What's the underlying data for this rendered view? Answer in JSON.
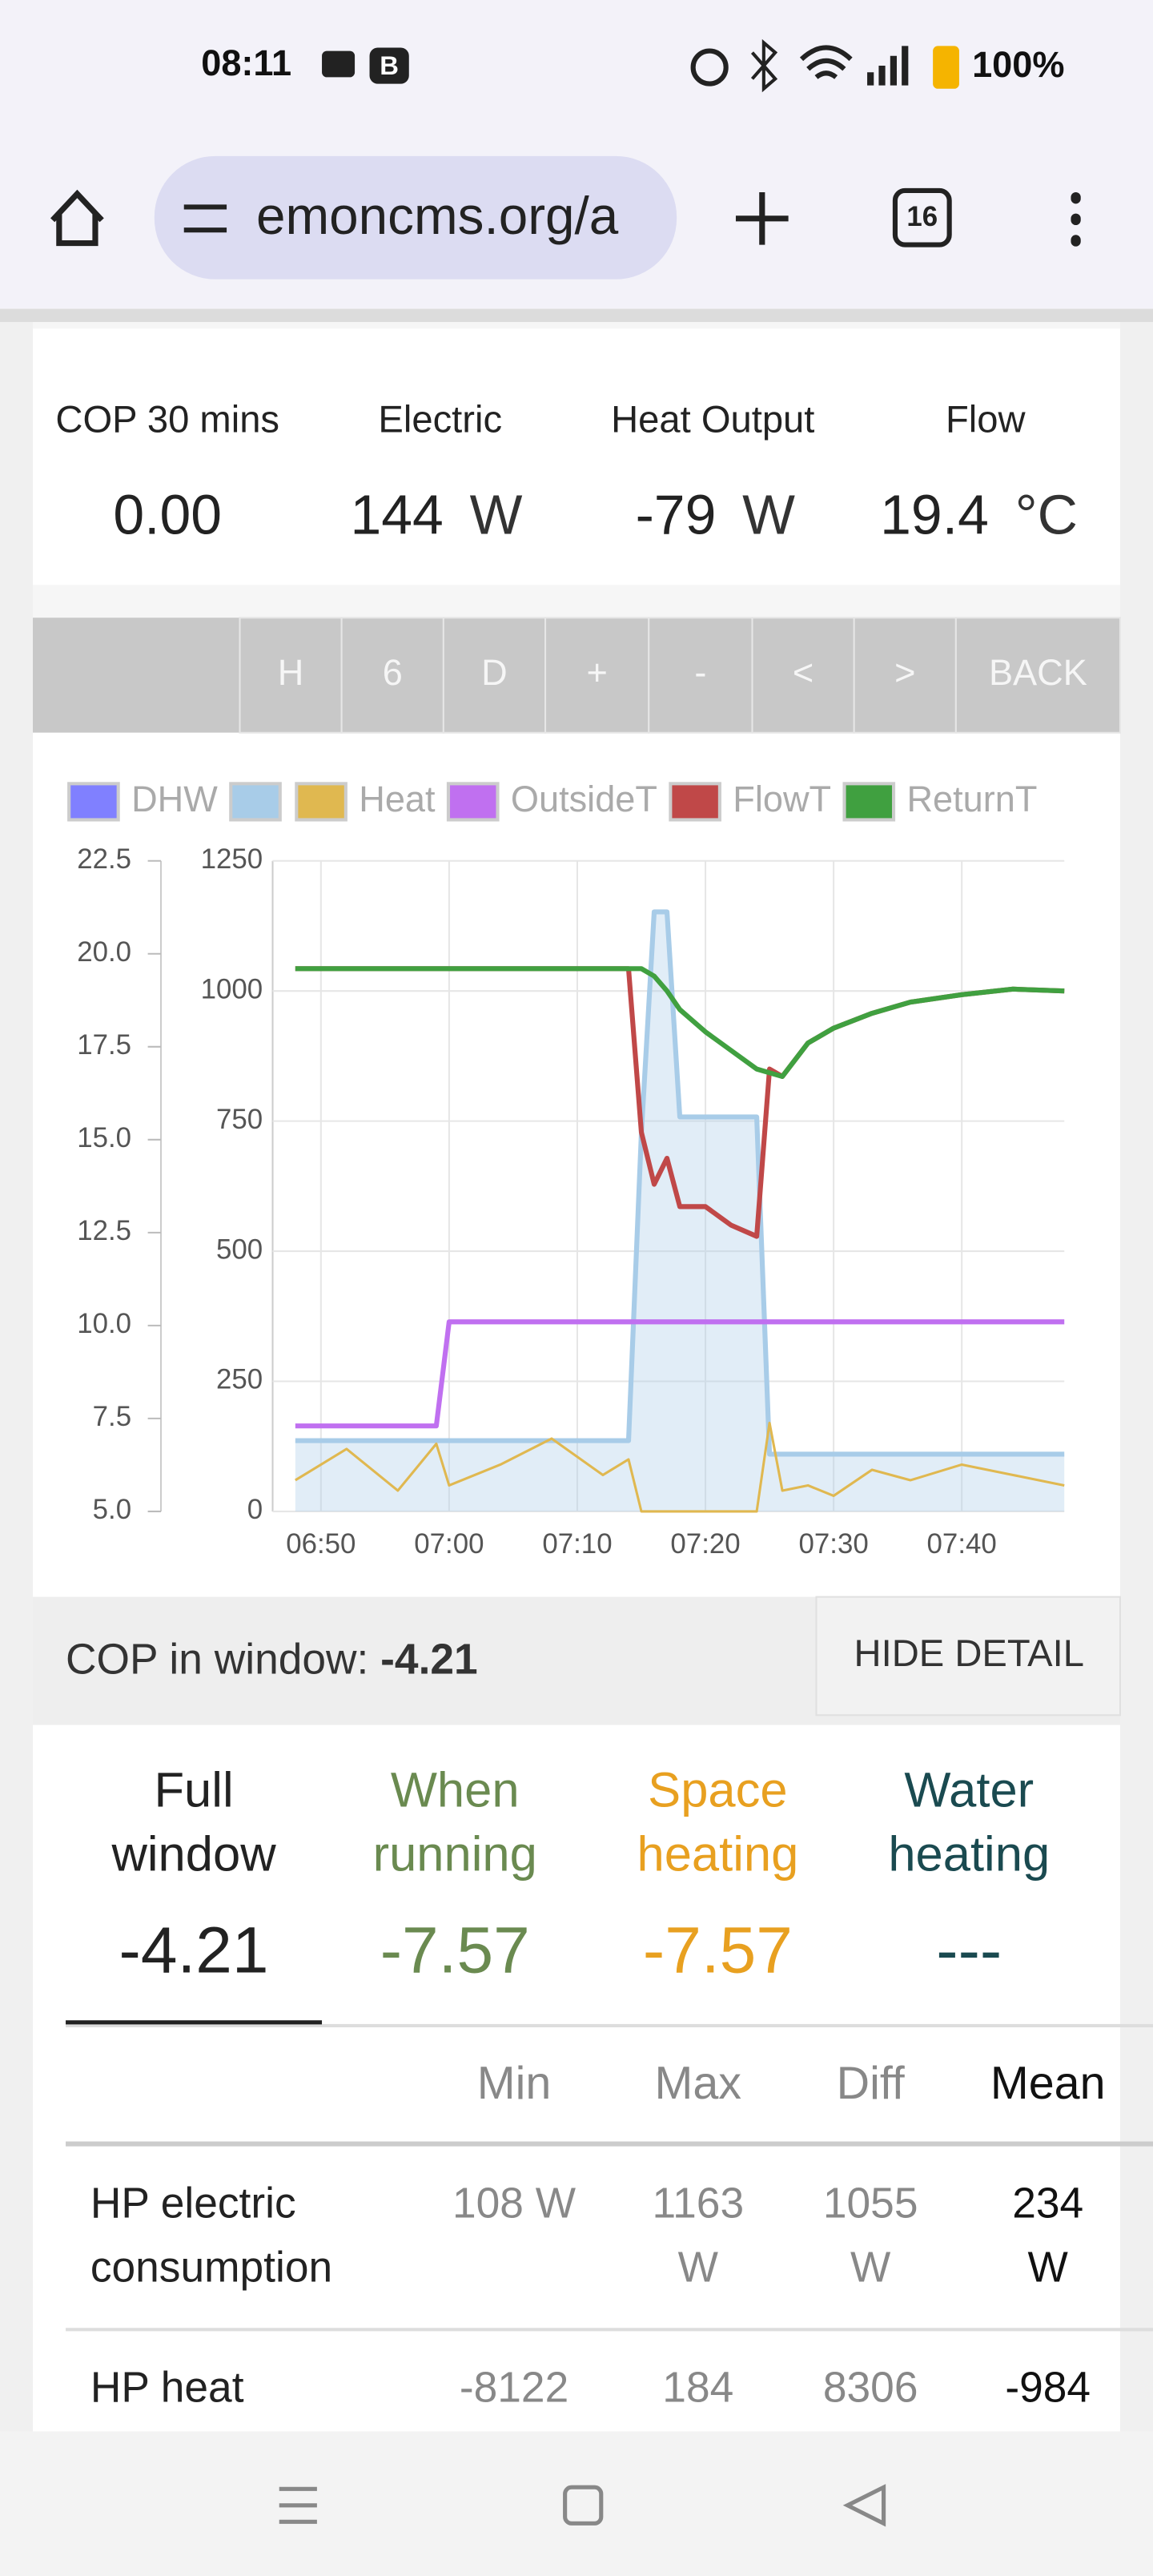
{
  "status_bar": {
    "time": "08:11",
    "battery": "100%"
  },
  "browser": {
    "url": "emoncms.org/a",
    "tab_count": "16"
  },
  "stats": [
    {
      "label": "COP 30 mins",
      "value": "0.00"
    },
    {
      "label": "Electric",
      "value": "144",
      "unit": "W"
    },
    {
      "label": "Heat Output",
      "value": "-79",
      "unit": "W"
    },
    {
      "label": "Flow",
      "value": "19.4",
      "unit": "°C"
    }
  ],
  "buttons": [
    "H",
    "6",
    "D",
    "+",
    "-",
    "<",
    ">",
    "BACK"
  ],
  "chart_data": {
    "type": "line",
    "x": [
      "06:48",
      "06:52",
      "06:56",
      "06:59",
      "07:00",
      "07:04",
      "07:08",
      "07:12",
      "07:14",
      "07:15",
      "07:16",
      "07:17",
      "07:18",
      "07:20",
      "07:22",
      "07:24",
      "07:25",
      "07:26",
      "07:28",
      "07:30",
      "07:33",
      "07:36",
      "07:40",
      "07:44",
      "07:48"
    ],
    "xlim": [
      "06:47",
      "07:48"
    ],
    "xticks": [
      "06:50",
      "07:00",
      "07:10",
      "07:20",
      "07:30",
      "07:40"
    ],
    "ylim": [
      5,
      22.5
    ],
    "yticks": [
      {
        "value": 5,
        "label": "5.0"
      },
      {
        "value": 7.5,
        "label": "7.5"
      },
      {
        "value": 10,
        "label": "10.0"
      },
      {
        "value": 12.5,
        "label": "12.5"
      },
      {
        "value": 15,
        "label": "15.0"
      },
      {
        "value": 17.5,
        "label": "17.5"
      },
      {
        "value": 20,
        "label": "20.0"
      },
      {
        "value": 22.5,
        "label": "22.5"
      }
    ],
    "y2lim": [
      0,
      1250
    ],
    "y2ticks": [
      0,
      250,
      500,
      750,
      1000,
      1250
    ],
    "grid": true,
    "series": [
      {
        "name": "DHW",
        "color": "#8080ff",
        "values": [
          null,
          null,
          null,
          null,
          null,
          null,
          null,
          null,
          null,
          null,
          null,
          null,
          null,
          null,
          null,
          null,
          null,
          null,
          null,
          null,
          null,
          null,
          null,
          null,
          null
        ]
      },
      {
        "color": "#a8cce8",
        "axis": "y2",
        "area": true,
        "values": [
          136,
          136,
          136,
          136,
          136,
          136,
          136,
          136,
          136,
          726,
          1152,
          1152,
          758,
          758,
          758,
          758,
          110,
          110,
          110,
          110,
          110,
          110,
          110,
          110,
          110
        ]
      },
      {
        "name": "Heat",
        "color": "#e0b850",
        "axis": "y2",
        "values": [
          60,
          120,
          40,
          130,
          50,
          90,
          140,
          70,
          100,
          0,
          0,
          0,
          0,
          0,
          0,
          0,
          170,
          40,
          50,
          30,
          80,
          60,
          90,
          70,
          50
        ]
      },
      {
        "name": "OutsideT",
        "color": "#c070f0",
        "values": [
          7.3,
          7.3,
          7.3,
          7.3,
          10.1,
          10.1,
          10.1,
          10.1,
          10.1,
          10.1,
          10.1,
          10.1,
          10.1,
          10.1,
          10.1,
          10.1,
          10.1,
          10.1,
          10.1,
          10.1,
          10.1,
          10.1,
          10.1,
          10.1,
          10.1
        ]
      },
      {
        "name": "FlowT",
        "color": "#c04848",
        "values": [
          19.6,
          19.6,
          19.6,
          19.6,
          19.6,
          19.6,
          19.6,
          19.6,
          19.6,
          15.2,
          13.8,
          14.5,
          13.2,
          13.2,
          12.7,
          12.4,
          16.9,
          16.7,
          17.6,
          18.0,
          18.4,
          18.7,
          18.9,
          19.05,
          19.0
        ]
      },
      {
        "name": "ReturnT",
        "color": "#40a040",
        "values": [
          19.6,
          19.6,
          19.6,
          19.6,
          19.6,
          19.6,
          19.6,
          19.6,
          19.6,
          19.6,
          19.4,
          19.0,
          18.5,
          17.9,
          17.4,
          16.9,
          16.8,
          16.7,
          17.6,
          18.0,
          18.4,
          18.7,
          18.9,
          19.05,
          19.0
        ]
      }
    ]
  },
  "cop_bar": {
    "label": "COP in window:",
    "value": "-4.21",
    "button": "HIDE DETAIL"
  },
  "tabs": [
    {
      "label": "Full window",
      "value": "-4.21",
      "color": "#222222"
    },
    {
      "label": "When running",
      "value": "-7.57",
      "color": "#6a8a50"
    },
    {
      "label": "Space heating",
      "value": "-7.57",
      "color": "#e8a020"
    },
    {
      "label": "Water heating",
      "value": "---",
      "color": "#1a4a50"
    }
  ],
  "table": {
    "columns": [
      "Min",
      "Max",
      "Diff",
      "Mean"
    ],
    "rows": [
      {
        "label": "HP electric consumption",
        "cells": [
          "108 W",
          "1163 W",
          "1055 W",
          "234 W"
        ]
      },
      {
        "label": "HP heat",
        "cells": [
          "-8122",
          "184",
          "8306",
          "-984"
        ]
      }
    ]
  }
}
